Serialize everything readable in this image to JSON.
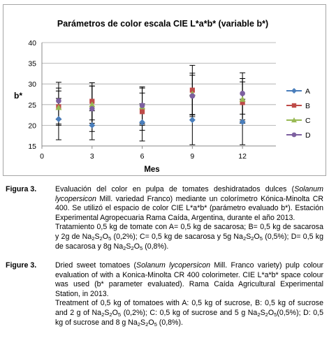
{
  "chart_data": {
    "type": "line",
    "title": "Parámetros de color escala CIE L*a*b* (variable b*)",
    "xlabel": "Mes",
    "ylabel": "b*",
    "x": [
      0,
      3,
      6,
      9,
      12
    ],
    "x_ticks": [
      "0",
      "3",
      "6",
      "9",
      "12"
    ],
    "ylim": [
      15,
      40
    ],
    "xlim": [
      0,
      14
    ],
    "y_ticks": [
      "15",
      "20",
      "25",
      "30",
      "35",
      "40"
    ],
    "grid": "horizontal",
    "legend_position": "right",
    "lines_between_points": false,
    "series": [
      {
        "name": "A",
        "color": "#4a7ebb",
        "marker": "diamond",
        "x": [
          1,
          3,
          6,
          9,
          12
        ],
        "values": [
          21.5,
          20.0,
          20.7,
          21.3,
          20.8
        ],
        "error": [
          5.0,
          3.5,
          4.5,
          6.0,
          5.5
        ]
      },
      {
        "name": "B",
        "color": "#be4b48",
        "marker": "square",
        "x": [
          1,
          3,
          6,
          9,
          12
        ],
        "values": [
          24.5,
          25.8,
          23.3,
          28.5,
          25.5
        ],
        "error": [
          4.5,
          4.5,
          4.5,
          6.0,
          5.0
        ]
      },
      {
        "name": "C",
        "color": "#98b954",
        "marker": "triangle",
        "x": [
          1,
          3,
          6,
          9,
          12
        ],
        "values": [
          24.3,
          25.0,
          24.5,
          27.6,
          26.3
        ],
        "error": [
          4.0,
          4.5,
          4.5,
          5.0,
          5.0
        ]
      },
      {
        "name": "D",
        "color": "#7d60a0",
        "marker": "circle",
        "x": [
          1,
          3,
          6,
          9,
          12
        ],
        "values": [
          25.9,
          24.0,
          24.8,
          27.1,
          27.7
        ],
        "error": [
          4.5,
          5.5,
          4.5,
          5.0,
          5.0
        ]
      }
    ]
  },
  "caption_es": {
    "label": "Figura 3.",
    "text1": "Evaluación del color en pulpa de tomates deshidratados dulces (",
    "species": "Solanum lycopersicon",
    "text2": " Mill. variedad Franco) mediante un colorímetro Kónica-Minolta CR 400. Se utilizó el espacio de color CIE L*a*b* (parámetro evaluado b*). Estación Experimental Agropecuaria Rama Caída, Argentina, durante el año 2013.",
    "t1": "Tratamiento 0,5 kg de tomate con A= 0,5 kg de sacarosa; B= 0,5 kg de sacarosa y 2g de Na",
    "t2": "S",
    "t3": "O",
    "t4": " (0,2%); C= 0,5 kg de sacarosa y 5g Na",
    "t5": "S",
    "t6": "O",
    "t7": " (0,5%); D= 0,5 kg de sacarosa y 8g Na",
    "t8": "S",
    "t9": "O",
    "t10": " (0,8%).",
    "s2": "2",
    "s5": "5"
  },
  "caption_en": {
    "label": "Figure 3.",
    "text1": "Dried sweet tomatoes (",
    "species": "Solanum lycopersicon",
    "text2": " Mill. Franco variety) pulp colour evaluation of with a Konica-Minolta CR 400 colorimeter. CIE L*a*b* space colour was used (b* parameter evaluated). Rama Caída Agricultural Experimental Station, in 2013.",
    "t1": "Treatment of 0,5 kg of tomatoes with A: 0,5 kg of sucrose, B: 0,5 kg of sucrose and 2 g of Na",
    "t2": "S",
    "t3": "O",
    "t4": " (0,2%); C: 0,5 kg of sucrose and 5 g Na",
    "t5": "S",
    "t6": "O",
    "t7": "(0,5%); D: 0,5 kg of sucrose and 8 g Na",
    "t8": "S",
    "t9": "O",
    "t10": " (0,8%).",
    "s2": "2",
    "s5": "5"
  }
}
